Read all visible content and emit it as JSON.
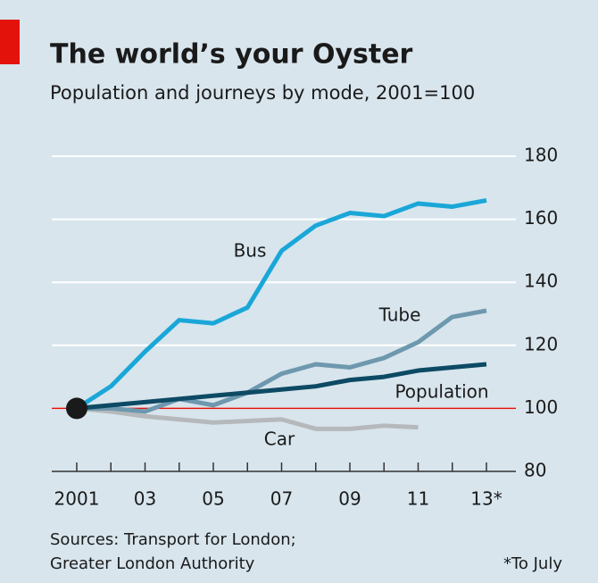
{
  "chart_data": {
    "type": "line",
    "title": "The world’s your Oyster",
    "subtitle": "Population and journeys by mode, 2001=100",
    "x": [
      2001,
      2002,
      2003,
      2004,
      2005,
      2006,
      2007,
      2008,
      2009,
      2010,
      2011,
      2012,
      2013
    ],
    "series": [
      {
        "name": "Bus",
        "color": "#1aa7d8",
        "values": [
          100,
          107,
          118,
          128,
          127,
          132,
          150,
          158,
          162,
          161,
          165,
          164,
          166
        ]
      },
      {
        "name": "Tube",
        "color": "#6e98ae",
        "values": [
          100,
          100,
          99,
          103,
          101,
          105,
          111,
          114,
          113,
          116,
          121,
          129,
          131
        ]
      },
      {
        "name": "Population",
        "color": "#0d4a64",
        "values": [
          100,
          101,
          102,
          103,
          104,
          105,
          106,
          107,
          109,
          110,
          112,
          113,
          114
        ]
      },
      {
        "name": "Car",
        "color": "#b5b9bb",
        "values": [
          100,
          99,
          97.5,
          96.5,
          95.5,
          96,
          96.5,
          93.5,
          93.5,
          94.5,
          94,
          null,
          null
        ]
      }
    ],
    "xlim": [
      2001,
      2013
    ],
    "xticks": [
      {
        "value": 2001,
        "label": "2001"
      },
      {
        "value": 2003,
        "label": "03"
      },
      {
        "value": 2005,
        "label": "05"
      },
      {
        "value": 2007,
        "label": "07"
      },
      {
        "value": 2009,
        "label": "09"
      },
      {
        "value": 2011,
        "label": "11"
      },
      {
        "value": 2013,
        "label": "13*"
      }
    ],
    "ylim": [
      80,
      180
    ],
    "yticks": [
      80,
      100,
      120,
      140,
      160,
      180
    ],
    "grid": true,
    "reference_line": 100,
    "reference_color": "#e3120b",
    "source": [
      "Sources: Transport for London;",
      "Greater London Authority"
    ],
    "footnote": "*To July"
  }
}
